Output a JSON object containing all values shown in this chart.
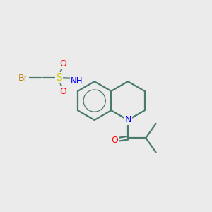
{
  "bg_color": "#ebebeb",
  "bond_color": "#4a7a6a",
  "atom_colors": {
    "Br": "#b8860b",
    "S": "#cccc00",
    "O": "#ff0000",
    "N": "#0000ff",
    "H": "#808080",
    "C": "#4a7a6a"
  },
  "font_size": 9,
  "line_width": 1.6
}
